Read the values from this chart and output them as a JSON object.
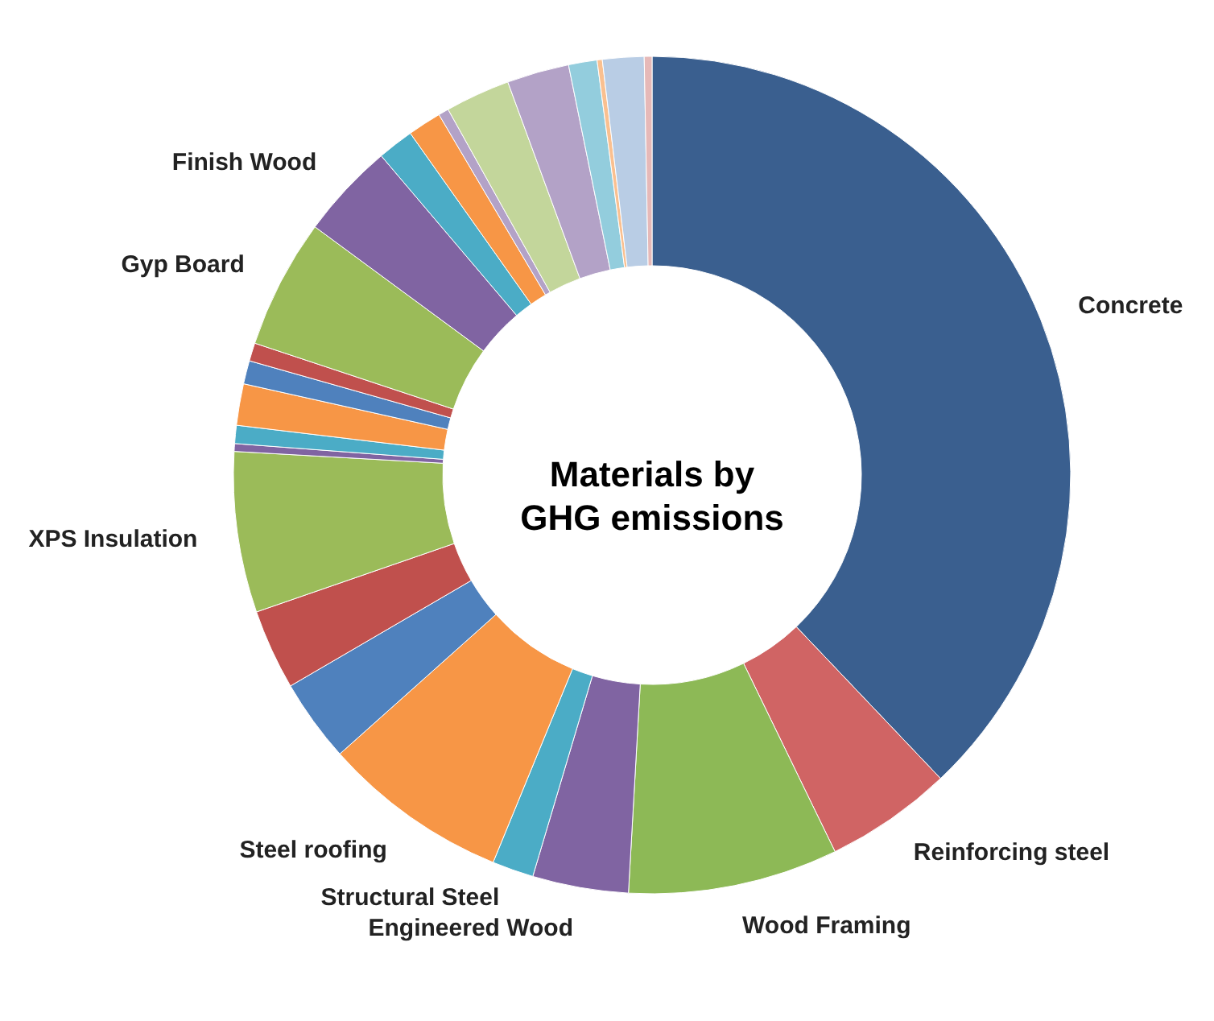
{
  "chart_data": {
    "type": "donut",
    "title": "Materials by GHG emissions",
    "categories": [
      "Concrete",
      "Reinforcing steel",
      "Wood Framing",
      "Engineered Wood",
      "Structural Steel",
      "Steel roofing",
      null,
      null,
      "XPS Insulation",
      null,
      null,
      null,
      null,
      null,
      "Gyp Board",
      "Finish Wood",
      null,
      null,
      null,
      null,
      null,
      null,
      null,
      null,
      null
    ],
    "values": [
      37.9,
      4.9,
      8.1,
      3.7,
      1.6,
      7.2,
      3.2,
      3.1,
      6.2,
      0.3,
      0.7,
      1.6,
      0.9,
      0.7,
      5.0,
      3.7,
      1.4,
      1.3,
      0.4,
      2.5,
      2.4,
      1.1,
      0.2,
      1.6,
      0.3
    ],
    "colors": [
      "#3a5f8f",
      "#d06464",
      "#8db956",
      "#8064a2",
      "#4bacc6",
      "#f79646",
      "#4f81bd",
      "#c0504d",
      "#9bbb59",
      "#8064a2",
      "#4bacc6",
      "#f79646",
      "#4f81bd",
      "#c0504d",
      "#9bbb59",
      "#8064a2",
      "#4bacc6",
      "#f79646",
      "#b3a2c7",
      "#c3d69b",
      "#b3a2c7",
      "#93cddd",
      "#fac090",
      "#b9cde5",
      "#e6b9b8"
    ]
  }
}
